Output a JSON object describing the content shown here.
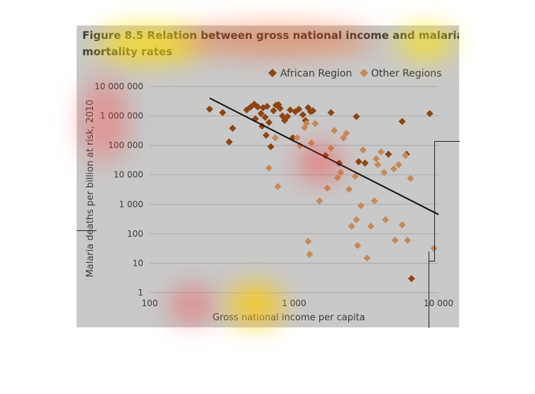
{
  "chart_data": {
    "type": "scatter",
    "title_line1": "Figure 8.5 Relation between gross national income and malaria",
    "title_line2": "mortality rates",
    "xlabel": "Gross national income per capita",
    "ylabel": "Malaria deaths per billion at risk, 2010",
    "x_scale": "log",
    "y_scale": "log",
    "xlim": [
      100,
      10000
    ],
    "ylim": [
      1,
      10000000
    ],
    "x_ticks": [
      {
        "value": 100,
        "label": "100"
      },
      {
        "value": 1000,
        "label": "1 000"
      },
      {
        "value": 10000,
        "label": "10 000"
      }
    ],
    "y_ticks": [
      {
        "value": 1,
        "label": "1"
      },
      {
        "value": 10,
        "label": "10"
      },
      {
        "value": 100,
        "label": "100"
      },
      {
        "value": 1000,
        "label": "1 000"
      },
      {
        "value": 10000,
        "label": "10 000"
      },
      {
        "value": 100000,
        "label": "100 000"
      },
      {
        "value": 1000000,
        "label": "1 000 000"
      },
      {
        "value": 10000000,
        "label": "10 000 000"
      }
    ],
    "grid": true,
    "legend_position": "top-right",
    "trendline": {
      "x": [
        260,
        10000
      ],
      "y": [
        4000000,
        450
      ]
    },
    "series": [
      {
        "name": "African Region",
        "color": "#8b4513",
        "marker": "diamond",
        "points": [
          [
            260,
            1700000
          ],
          [
            320,
            1300000
          ],
          [
            375,
            380000
          ],
          [
            355,
            130000
          ],
          [
            470,
            1600000
          ],
          [
            500,
            2000000
          ],
          [
            530,
            2500000
          ],
          [
            560,
            2000000
          ],
          [
            610,
            1900000
          ],
          [
            650,
            2100000
          ],
          [
            540,
            800000
          ],
          [
            590,
            1200000
          ],
          [
            600,
            450000
          ],
          [
            630,
            900000
          ],
          [
            640,
            220000
          ],
          [
            670,
            600000
          ],
          [
            690,
            90000
          ],
          [
            720,
            1500000
          ],
          [
            750,
            2300000
          ],
          [
            780,
            2400000
          ],
          [
            800,
            1800000
          ],
          [
            830,
            1000000
          ],
          [
            860,
            700000
          ],
          [
            900,
            950000
          ],
          [
            940,
            1600000
          ],
          [
            980,
            180000
          ],
          [
            1020,
            1400000
          ],
          [
            1080,
            1700000
          ],
          [
            1150,
            1100000
          ],
          [
            1200,
            700000
          ],
          [
            1250,
            1900000
          ],
          [
            1300,
            1400000
          ],
          [
            1350,
            1500000
          ],
          [
            1650,
            45000
          ],
          [
            1800,
            1300000
          ],
          [
            2050,
            25000
          ],
          [
            2700,
            950000
          ],
          [
            2800,
            28000
          ],
          [
            3100,
            25000
          ],
          [
            4500,
            50000
          ],
          [
            5600,
            650000
          ],
          [
            6000,
            50000
          ],
          [
            6500,
            3
          ],
          [
            8700,
            1200000
          ]
        ]
      },
      {
        "name": "Other Regions",
        "color": "#c48a5a",
        "marker": "diamond",
        "points": [
          [
            670,
            17000
          ],
          [
            740,
            180000
          ],
          [
            770,
            4000
          ],
          [
            1050,
            180000
          ],
          [
            1100,
            100000
          ],
          [
            1180,
            400000
          ],
          [
            1220,
            560000
          ],
          [
            1250,
            55
          ],
          [
            1280,
            20
          ],
          [
            1320,
            120000
          ],
          [
            1400,
            550000
          ],
          [
            1500,
            1300
          ],
          [
            1700,
            3500
          ],
          [
            1800,
            80000
          ],
          [
            1900,
            320000
          ],
          [
            2000,
            8000
          ],
          [
            2100,
            12000
          ],
          [
            2200,
            180000
          ],
          [
            2300,
            260000
          ],
          [
            2400,
            3200
          ],
          [
            2500,
            180
          ],
          [
            2650,
            9000
          ],
          [
            2700,
            300
          ],
          [
            2750,
            40
          ],
          [
            2900,
            900
          ],
          [
            3000,
            70000
          ],
          [
            3200,
            15
          ],
          [
            3400,
            180
          ],
          [
            3600,
            1300
          ],
          [
            3700,
            35000
          ],
          [
            3800,
            22000
          ],
          [
            4000,
            60000
          ],
          [
            4200,
            12000
          ],
          [
            4300,
            300
          ],
          [
            4900,
            16000
          ],
          [
            5000,
            60
          ],
          [
            5300,
            22000
          ],
          [
            5600,
            200
          ],
          [
            5900,
            45000
          ],
          [
            6100,
            60
          ],
          [
            6400,
            7500
          ],
          [
            9300,
            32
          ]
        ]
      }
    ]
  },
  "colors": {
    "background": "#c9c9c9",
    "gridline": "#a9a9a9",
    "trendline": "#111111"
  }
}
